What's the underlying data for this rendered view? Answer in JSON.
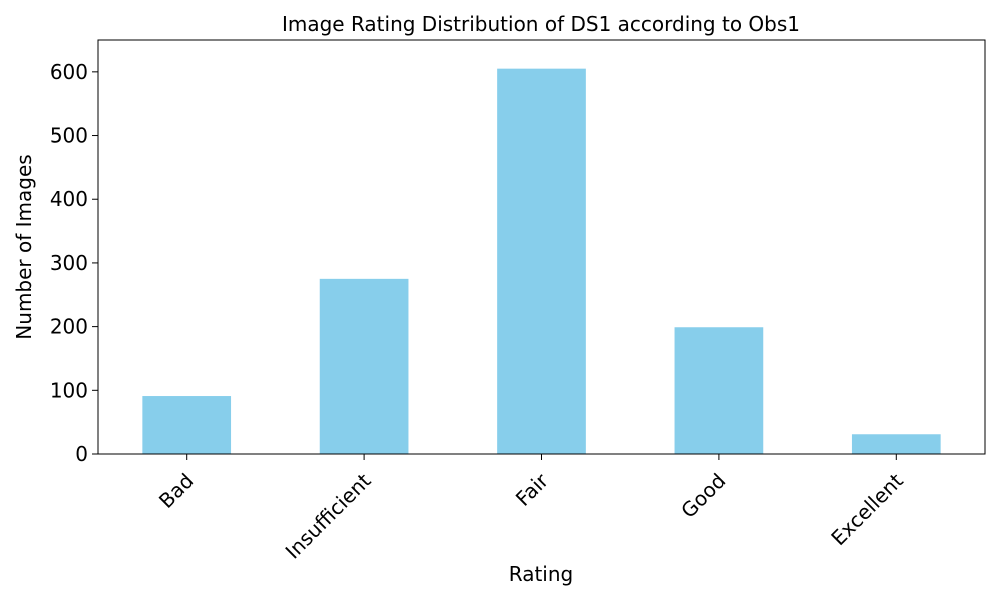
{
  "chart_data": {
    "type": "bar",
    "title": "Image Rating Distribution of DS1 according to Obs1",
    "xlabel": "Rating",
    "ylabel": "Number of Images",
    "categories": [
      "Bad",
      "Insufficient",
      "Fair",
      "Good",
      "Excellent"
    ],
    "values": [
      91,
      275,
      605,
      199,
      31
    ],
    "ylim": [
      0,
      650
    ],
    "yticks": [
      0,
      100,
      200,
      300,
      400,
      500,
      600
    ],
    "bar_color": "#87CEEB",
    "grid": false,
    "legend": "none"
  }
}
